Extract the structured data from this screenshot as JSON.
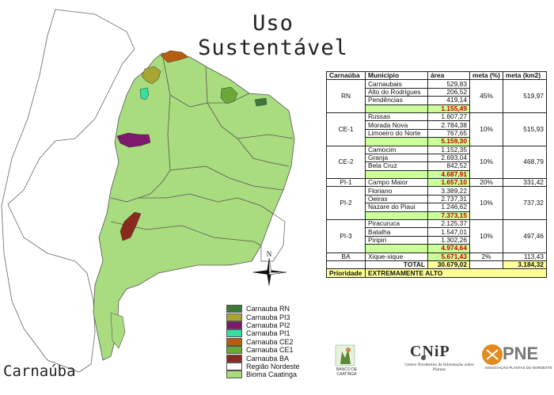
{
  "title": "Uso Sustentável",
  "subtitle": "Carnaúba",
  "compass_label": "N",
  "legend": [
    {
      "label": "Carnauba RN",
      "color": "#3d7a3a"
    },
    {
      "label": "Carnauba PI3",
      "color": "#a8a632"
    },
    {
      "label": "Carnauba PI2",
      "color": "#7d1a6e"
    },
    {
      "label": "Carnauba PI1",
      "color": "#33e0a0"
    },
    {
      "label": "Carnauba CE2",
      "color": "#b85c12"
    },
    {
      "label": "Carnauba CE1",
      "color": "#6aa83a"
    },
    {
      "label": "Carnauba BA",
      "color": "#8a2a1e"
    },
    {
      "label": "Região Nordeste",
      "color": "#ffffff"
    },
    {
      "label": "Bioma Caatinga",
      "color": "#a9dc7e"
    }
  ],
  "table": {
    "headers": [
      "Carnaúba",
      "Municipio",
      "área",
      "meta (%)",
      "meta (km2)"
    ],
    "groups": [
      {
        "region": "RN",
        "meta_pct": "45%",
        "meta_km2": "519,97",
        "rows": [
          [
            "Carnaubais",
            "529,83"
          ],
          [
            "Alto do Rodrigues",
            "206,52"
          ],
          [
            "Pendências",
            "419,14"
          ]
        ],
        "subtotal": "1.155,49"
      },
      {
        "region": "CE-1",
        "meta_pct": "10%",
        "meta_km2": "515,93",
        "rows": [
          [
            "Russas",
            "1.607,27"
          ],
          [
            "Morada Nova",
            "2.784,38"
          ],
          [
            "Limoeiro do Norte",
            "767,65"
          ]
        ],
        "subtotal": "5.159,30"
      },
      {
        "region": "CE-2",
        "meta_pct": "10%",
        "meta_km2": "468,79",
        "rows": [
          [
            "Camocim",
            "1.152,35"
          ],
          [
            "Granja",
            "2.693,04"
          ],
          [
            "Bela Cruz",
            "842,52"
          ]
        ],
        "subtotal": "4.687,91"
      },
      {
        "region": "PI-1",
        "meta_pct": "20%",
        "meta_km2": "331,42",
        "rows": [
          [
            "Campo Maior",
            "1.657,10"
          ]
        ],
        "subtotal": null,
        "inline_total": true
      },
      {
        "region": "PI-2",
        "meta_pct": "10%",
        "meta_km2": "737,32",
        "rows": [
          [
            "Floriano",
            "3.389,22"
          ],
          [
            "Oeiras",
            "2.737,31"
          ],
          [
            "Nazare do Piaui",
            "1.246,62"
          ]
        ],
        "subtotal": "7.373,15"
      },
      {
        "region": "PI-3",
        "meta_pct": "10%",
        "meta_km2": "497,46",
        "rows": [
          [
            "Piracuruca",
            "2.125,37"
          ],
          [
            "Batalha",
            "1.547,01"
          ],
          [
            "Piripiri",
            "1.302,26"
          ]
        ],
        "subtotal": "4.974,64"
      },
      {
        "region": "BA",
        "meta_pct": "2%",
        "meta_km2": "113,43",
        "rows": [
          [
            "Xique-xique",
            "5.671,43"
          ]
        ],
        "subtotal": null,
        "inline_total": true
      }
    ],
    "total_label": "TOTAL",
    "total_area": "30.679,02",
    "total_km2": "3.184,32",
    "priority_label": "Prioridade",
    "priority_value": "EXTREMAMENTE ALTO"
  },
  "logos": {
    "left_caption": "BANCO DE\nCAATINGA",
    "cnip_name": "CNiP",
    "cnip_caption": "Centro Nordestino de Informação sobre Plantas",
    "pne_name": "PNE",
    "pne_caption": "ASSOCIAÇÃO PLANTAS DO NORDESTE"
  }
}
